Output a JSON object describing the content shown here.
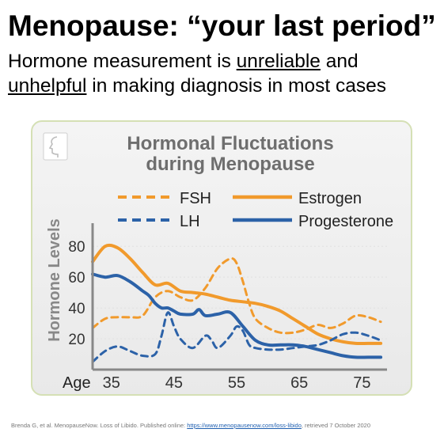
{
  "slide": {
    "title": "Menopause: “your last period”",
    "subtitle": {
      "part1": "Hormone measurement is ",
      "u1": "unreliable",
      "part2": " and",
      "u2": "unhelpful",
      "part3": " in making diagnosis in most cases"
    }
  },
  "citation": {
    "text": "Brenda G, et al. MenopauseNow.  Loss of Libido. Published online: ",
    "link": "https://www.menopausenow.com/loss-libido",
    "after": ",   retrieved   7 October 2020"
  },
  "colors": {
    "orange": "#f19a2c",
    "blue": "#2c62a8",
    "axis": "#888888",
    "title": "#6e6e6e",
    "ylabel": "#888888"
  },
  "icons": {
    "corner": "face-profile-icon"
  },
  "chart_data": {
    "type": "line",
    "title": "Hormonal Fluctuations during Menopause",
    "title_lines": [
      "Hormonal Fluctuations",
      "during Menopause"
    ],
    "xlabel": "Age",
    "ylabel": "Hormone Levels",
    "xlim": [
      32,
      79
    ],
    "ylim": [
      0,
      95
    ],
    "xticks": [
      35,
      45,
      55,
      65,
      75
    ],
    "yticks": [
      20,
      40,
      60,
      80
    ],
    "grid": false,
    "legend_position": "top",
    "series": [
      {
        "name": "FSH",
        "color": "#f19a2c",
        "dash": true,
        "x": [
          32,
          34,
          36,
          38,
          40,
          42,
          44,
          46,
          48,
          50,
          52,
          54,
          55,
          56,
          57,
          58,
          60,
          62,
          64,
          66,
          68,
          70,
          72,
          74,
          76,
          78
        ],
        "y": [
          27,
          33,
          34,
          34,
          35,
          47,
          51,
          47,
          45,
          53,
          66,
          72,
          69,
          57,
          43,
          33,
          27,
          24,
          24,
          26,
          29,
          27,
          30,
          35,
          34,
          31
        ]
      },
      {
        "name": "Estrogen",
        "color": "#f19a2c",
        "dash": false,
        "x": [
          32,
          34,
          36,
          38,
          40,
          42,
          44,
          46,
          48,
          50,
          52,
          54,
          56,
          58,
          60,
          62,
          64,
          66,
          68,
          70,
          72,
          74,
          76,
          78
        ],
        "y": [
          70,
          80,
          79,
          72,
          63,
          55,
          56,
          51,
          50,
          49,
          47,
          45,
          44,
          43,
          41,
          38,
          33,
          28,
          23,
          20,
          18,
          17,
          17,
          17
        ]
      },
      {
        "name": "LH",
        "color": "#2c62a8",
        "dash": true,
        "x": [
          32,
          34,
          36,
          38,
          40,
          42,
          43,
          44,
          45,
          46,
          48,
          50,
          51,
          52,
          54,
          55,
          56,
          57,
          58,
          60,
          62,
          64,
          66,
          68,
          70,
          72,
          74,
          76,
          78
        ],
        "y": [
          5,
          12,
          15,
          12,
          9,
          10,
          22,
          37,
          28,
          20,
          14,
          22,
          19,
          14,
          22,
          28,
          25,
          16,
          14,
          13,
          13,
          14,
          15,
          16,
          19,
          23,
          24,
          22,
          19
        ]
      },
      {
        "name": "Progesterone",
        "color": "#2c62a8",
        "dash": false,
        "x": [
          32,
          34,
          36,
          38,
          40,
          41,
          42,
          43,
          44,
          45,
          46,
          48,
          49,
          50,
          52,
          54,
          56,
          58,
          60,
          62,
          64,
          66,
          68,
          70,
          72,
          74,
          76,
          78
        ],
        "y": [
          62,
          60,
          61,
          57,
          51,
          48,
          43,
          40,
          40,
          38,
          36,
          36,
          39,
          35,
          36,
          37,
          28,
          19,
          16,
          16,
          16,
          15,
          13,
          11,
          9,
          8,
          8,
          8
        ]
      }
    ]
  }
}
